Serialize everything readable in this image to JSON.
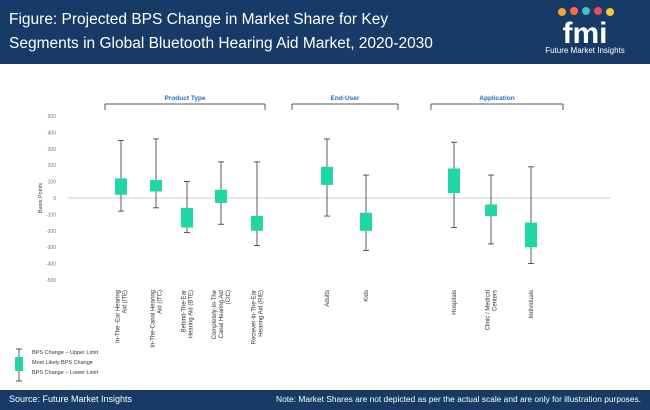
{
  "header": {
    "title": "Figure: Projected BPS Change in Market Share for Key Segments in Global Bluetooth Hearing Aid Market, 2020-2030",
    "logo_text": "fmi",
    "logo_caption": "Future Market Insights"
  },
  "legend": {
    "upper": "BPS Change – Upper Limit",
    "likely": "Most Likely BPS Change",
    "lower": "BPS Change – Lower Limit"
  },
  "footer": {
    "source": "Source: Future Market Insights",
    "note": "Note: Market Shares are not depicted as per the actual scale and are only for illustration purposes."
  },
  "colors": {
    "header_bg": "#183a66",
    "box": "#20d6a4",
    "group_label": "#1a6fc4"
  },
  "chart_data": {
    "type": "box",
    "ylabel": "Basis Points",
    "ylim": [
      -500,
      500
    ],
    "yticks": [
      500,
      400,
      300,
      200,
      100,
      0,
      -100,
      -200,
      -300,
      -400,
      -500
    ],
    "groups": [
      {
        "name": "Product Type",
        "categories": [
          0,
          1,
          2,
          3,
          4
        ]
      },
      {
        "name": "End-User",
        "categories": [
          5,
          6
        ]
      },
      {
        "name": "Application",
        "categories": [
          7,
          8,
          9
        ]
      }
    ],
    "categories": [
      "In-The -Ear Hearing Aid (ITE)",
      "In-The-Canal Hearing Aid (ITC)",
      "Behind-The-Ear Hearing Aid (BTE)",
      "Completely-In-The Canal Hearing Aid (CIC)",
      "Reciever-In-The-Ear Hearing Aid (RIE)",
      "Adults",
      "Kids",
      "Hospitals",
      "Clinic / Medical Centers",
      "Individuals"
    ],
    "series": [
      {
        "upper": 350,
        "box_high": 120,
        "box_low": 20,
        "lower": -80
      },
      {
        "upper": 360,
        "box_high": 110,
        "box_low": 40,
        "lower": -60
      },
      {
        "upper": 100,
        "box_high": -60,
        "box_low": -180,
        "lower": -210
      },
      {
        "upper": 220,
        "box_high": 50,
        "box_low": -30,
        "lower": -160
      },
      {
        "upper": 220,
        "box_high": -110,
        "box_low": -200,
        "lower": -290
      },
      {
        "upper": 360,
        "box_high": 190,
        "box_low": 80,
        "lower": -110
      },
      {
        "upper": 140,
        "box_high": -90,
        "box_low": -200,
        "lower": -320
      },
      {
        "upper": 340,
        "box_high": 180,
        "box_low": 30,
        "lower": -180
      },
      {
        "upper": 140,
        "box_high": -40,
        "box_low": -110,
        "lower": -280
      },
      {
        "upper": 190,
        "box_high": -150,
        "box_low": -300,
        "lower": -400
      }
    ]
  }
}
